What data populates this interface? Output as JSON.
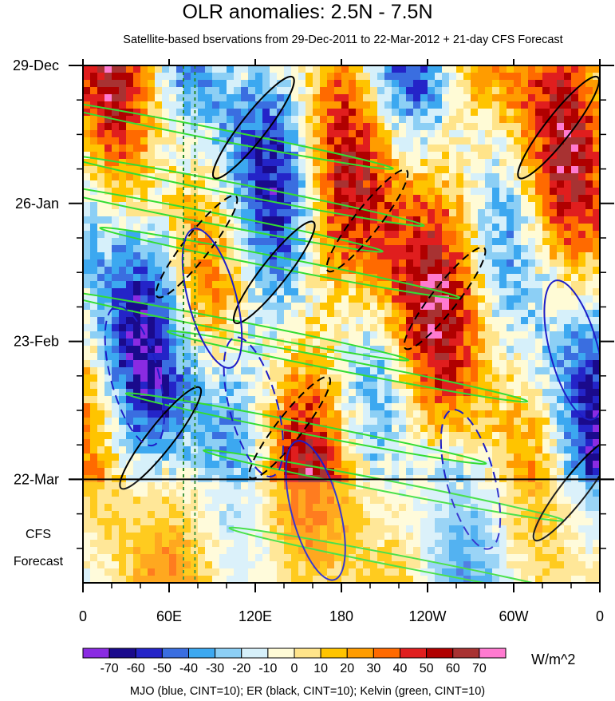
{
  "chart_data": {
    "type": "heatmap",
    "title": "OLR anomalies: 2.5N - 7.5N",
    "subtitle": "Satellite-based bservations from 29-Dec-2011 to 22-Mar-2012 + 21-day CFS Forecast",
    "x_ticks": [
      "0",
      "60E",
      "120E",
      "180",
      "120W",
      "60W",
      "0"
    ],
    "x_tick_values": [
      0,
      60,
      120,
      180,
      240,
      300,
      360
    ],
    "xlim": [
      0,
      360
    ],
    "y_ticks": [
      "29-Dec",
      "26-Jan",
      "23-Feb",
      "22-Mar"
    ],
    "ylim": [
      "29-Dec-2011",
      "12-Apr-2012"
    ],
    "forecast_start": "22-Mar-2012",
    "forecast_label": [
      "CFS",
      "Forecast"
    ],
    "colorbar": {
      "levels": [
        "-70",
        "-60",
        "-50",
        "-40",
        "-30",
        "-20",
        "-10",
        "0",
        "10",
        "20",
        "30",
        "40",
        "50",
        "60",
        "70"
      ],
      "colors": [
        "#8a2be2",
        "#1a0a8c",
        "#2424c8",
        "#3a6ee0",
        "#3ca8f0",
        "#8ccff5",
        "#d6f0fa",
        "#fffbd6",
        "#ffe48a",
        "#ffc400",
        "#ff9c00",
        "#ff6a00",
        "#e01e1e",
        "#b00000",
        "#a83232",
        "#ff7ad0"
      ],
      "units": "W/m^2"
    },
    "contour_legend": "MJO (blue, CINT=10); ER (black, CINT=10); Kelvin (green, CINT=10)",
    "series_colors": {
      "MJO": "#1e1ec8",
      "ER": "#000000",
      "Kelvin": "#33dd33"
    }
  }
}
